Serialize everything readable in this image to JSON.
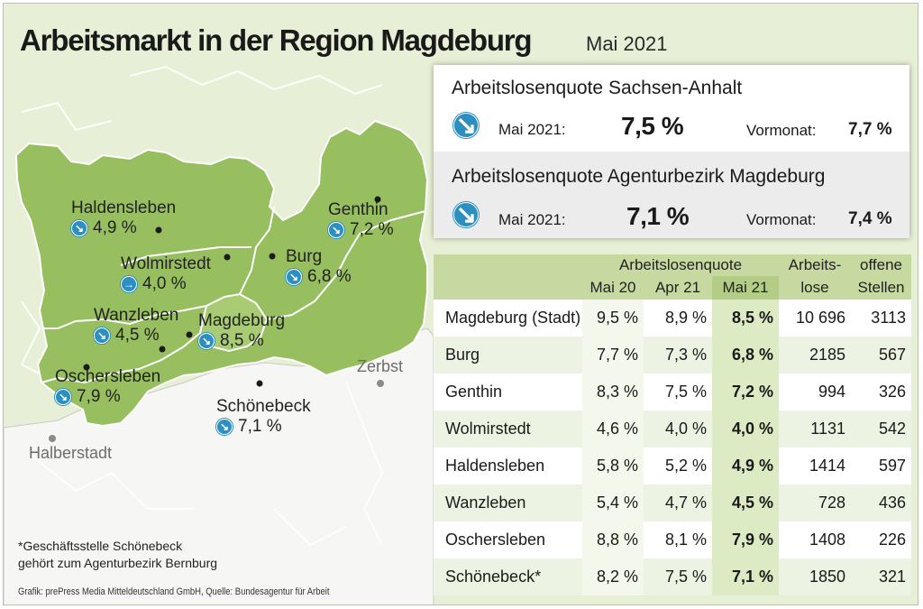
{
  "header": {
    "title": "Arbeitsmarkt in der Region Magdeburg",
    "date": "Mai 2021"
  },
  "colors": {
    "region": "#97bf5f",
    "background": "#e7efd6",
    "icon": "#2d8fc0",
    "table_header": "#c6d9a0",
    "outside": "#f5f5f5"
  },
  "map": {
    "cities": [
      {
        "name": "Haldensleben",
        "value": "4,9 %",
        "trend": "down"
      },
      {
        "name": "Genthin",
        "value": "7,2 %",
        "trend": "down"
      },
      {
        "name": "Wolmirstedt",
        "value": "4,0 %",
        "trend": "flat"
      },
      {
        "name": "Burg",
        "value": "6,8 %",
        "trend": "down"
      },
      {
        "name": "Wanzleben",
        "value": "4,5 %",
        "trend": "down"
      },
      {
        "name": "Magdeburg",
        "value": "8,5 %",
        "trend": "down"
      },
      {
        "name": "Oschersleben",
        "value": "7,9 %",
        "trend": "down"
      },
      {
        "name": "Schönebeck",
        "value": "7,1 %",
        "trend": "down"
      }
    ],
    "other_places": [
      "Zerbst",
      "Halberstadt"
    ]
  },
  "quotes": [
    {
      "title": "Arbeitslosenquote Sachsen-Anhalt",
      "period_label": "Mai 2021:",
      "value": "7,5 %",
      "prev_label": "Vormonat:",
      "prev_value": "7,7 %"
    },
    {
      "title": "Arbeitslosenquote Agenturbezirk Magdeburg",
      "period_label": "Mai 2021:",
      "value": "7,1 %",
      "prev_label": "Vormonat:",
      "prev_value": "7,4 %"
    }
  ],
  "table": {
    "group_header": "Arbeitslosenquote",
    "col_headers": [
      "Mai 20",
      "Apr 21",
      "Mai 21"
    ],
    "col_arbeitslose": [
      "Arbeits-",
      "lose"
    ],
    "col_stellen": [
      "offene",
      "Stellen"
    ],
    "rows": [
      {
        "region": "Magdeburg (Stadt)",
        "mai20": "9,5 %",
        "apr21": "8,9 %",
        "mai21": "8,5 %",
        "arbeitslose": "10 696",
        "stellen": "3113"
      },
      {
        "region": "Burg",
        "mai20": "7,7 %",
        "apr21": "7,3 %",
        "mai21": "6,8 %",
        "arbeitslose": "2185",
        "stellen": "567"
      },
      {
        "region": "Genthin",
        "mai20": "8,3 %",
        "apr21": "7,5 %",
        "mai21": "7,2 %",
        "arbeitslose": "994",
        "stellen": "326"
      },
      {
        "region": "Wolmirstedt",
        "mai20": "4,6 %",
        "apr21": "4,0 %",
        "mai21": "4,0 %",
        "arbeitslose": "1131",
        "stellen": "542"
      },
      {
        "region": "Haldensleben",
        "mai20": "5,8 %",
        "apr21": "5,2 %",
        "mai21": "4,9 %",
        "arbeitslose": "1414",
        "stellen": "597"
      },
      {
        "region": "Wanzleben",
        "mai20": "5,4 %",
        "apr21": "4,7 %",
        "mai21": "4,5 %",
        "arbeitslose": "728",
        "stellen": "436"
      },
      {
        "region": "Oschersleben",
        "mai20": "8,8 %",
        "apr21": "8,1 %",
        "mai21": "7,9 %",
        "arbeitslose": "1408",
        "stellen": "226"
      },
      {
        "region": "Schönebeck*",
        "mai20": "8,2 %",
        "apr21": "7,5 %",
        "mai21": "7,1 %",
        "arbeitslose": "1850",
        "stellen": "321"
      }
    ]
  },
  "footnote": [
    "*Geschäftsstelle Schönebeck",
    "gehört zum Agenturbezirk Bernburg"
  ],
  "credit": "Grafik: prePress Media Mitteldeutschland GmbH, Quelle: Bundesagentur für Arbeit"
}
